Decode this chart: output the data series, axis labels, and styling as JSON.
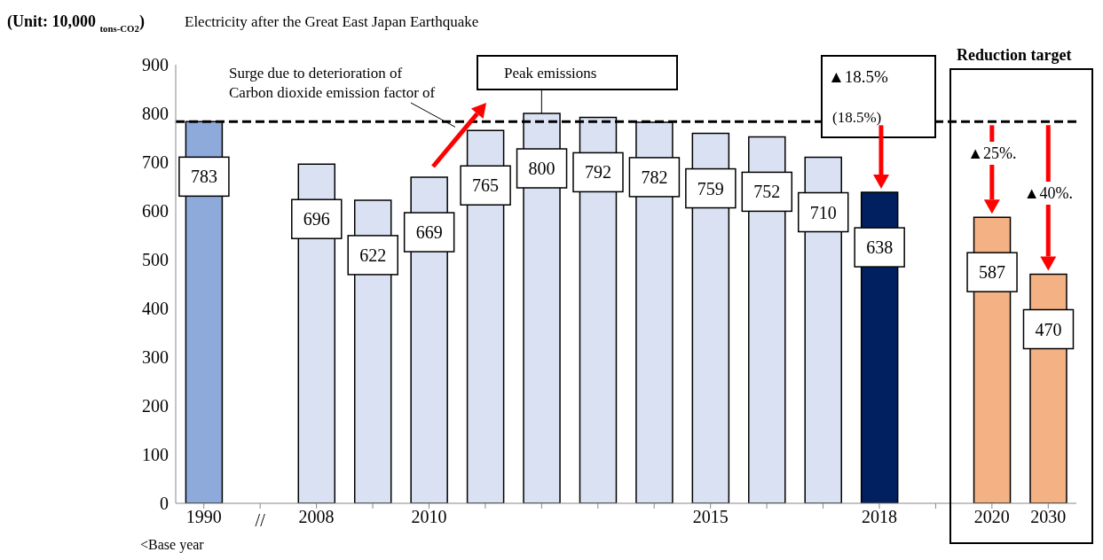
{
  "chart_data": {
    "type": "bar",
    "ylabel": "(Unit: 10,000 $_{tons-CO2}$)",
    "categories": [
      "1990",
      null,
      "2008",
      null,
      "2010",
      null,
      null,
      null,
      null,
      "2015",
      null,
      null,
      "2018",
      null,
      "2020",
      "2030"
    ],
    "values": [
      783,
      null,
      696,
      622,
      669,
      765,
      800,
      792,
      782,
      759,
      752,
      710,
      638,
      null,
      587,
      470
    ],
    "colors": [
      "#8eaadb",
      null,
      "#d9e1f2",
      "#d9e1f2",
      "#d9e1f2",
      "#d9e1f2",
      "#d9e1f2",
      "#d9e1f2",
      "#d9e1f2",
      "#d9e1f2",
      "#d9e1f2",
      "#d9e1f2",
      "#002060",
      null,
      "#f4b183",
      "#f4b183"
    ],
    "data_labels": true,
    "ylim": [
      0,
      900
    ],
    "yticks": [
      0,
      100,
      200,
      300,
      400,
      500,
      600,
      700,
      800,
      900
    ],
    "ref_lines": [
      {
        "axis": "y",
        "value": 783,
        "line_style": "dashed",
        "color": "#000000"
      }
    ],
    "annotations": [
      "Electricity after the Great East Japan Earthquake",
      "Surge due to deterioration of",
      "Carbon dioxide emission factor of",
      "Peak emissions",
      "▲18.5%",
      "(18.5%)",
      "Reduction target",
      "▲25%.",
      "▲40%.",
      "<Base year",
      "//"
    ]
  }
}
